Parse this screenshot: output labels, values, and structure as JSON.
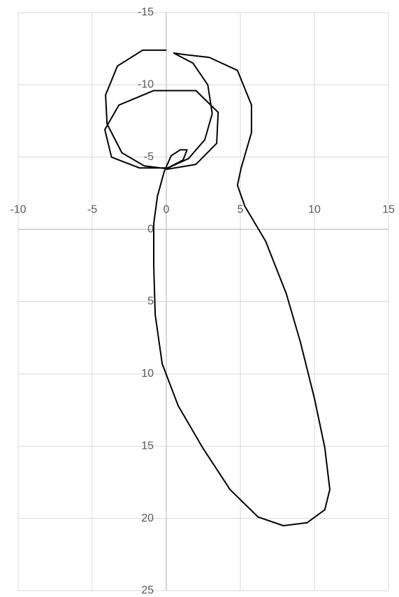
{
  "chart_data": {
    "type": "line",
    "color": "#000000",
    "grid": true,
    "y_inverted": true,
    "xlim": [
      -10,
      15
    ],
    "ylim": [
      -15,
      25
    ],
    "xticks": [
      -10,
      -5,
      0,
      5,
      10,
      15
    ],
    "yticks": [
      -15,
      -10,
      -5,
      0,
      5,
      10,
      15,
      20,
      25
    ],
    "x": [
      0,
      -1.6,
      -3.3,
      -4.1,
      -4.0,
      -3.0,
      -1.5,
      0,
      1.5,
      2.6,
      3.1,
      2.8,
      1.8,
      0.5,
      1.2,
      2.9,
      4.8,
      5.75,
      5.75,
      5.05,
      4.8,
      5.3,
      6.7,
      8.1,
      9.05,
      10.0,
      10.7,
      11.04,
      10.7,
      9.5,
      7.9,
      6.2,
      4.3,
      2.45,
      0.8,
      -0.28,
      -0.75,
      -0.85,
      -0.85,
      -0.6,
      -0.14,
      0.33,
      0.94,
      1.4,
      1.13,
      0.1,
      -1.8,
      -3.7,
      -4.15,
      -3.2,
      -0.85,
      2.0,
      3.5,
      3.4,
      2.0,
      0
    ],
    "values": [
      -12.4,
      -12.4,
      -11.3,
      -9.3,
      -7.3,
      -5.3,
      -4.4,
      -4.2,
      -4.9,
      -6.2,
      -8.0,
      -10.0,
      -11.5,
      -12.2,
      -12.1,
      -11.9,
      -11.0,
      -8.6,
      -6.7,
      -4.25,
      -3.05,
      -1.6,
      0.8,
      4.45,
      7.8,
      11.7,
      15.1,
      18.0,
      19.4,
      20.3,
      20.5,
      19.9,
      18.0,
      15.1,
      12.2,
      9.3,
      5.9,
      2.5,
      -0.4,
      -2.3,
      -4.0,
      -5.1,
      -5.5,
      -5.5,
      -4.8,
      -4.25,
      -4.25,
      -5.0,
      -6.9,
      -8.6,
      -9.6,
      -9.6,
      -8.1,
      -5.95,
      -4.5,
      -4.15
    ]
  }
}
